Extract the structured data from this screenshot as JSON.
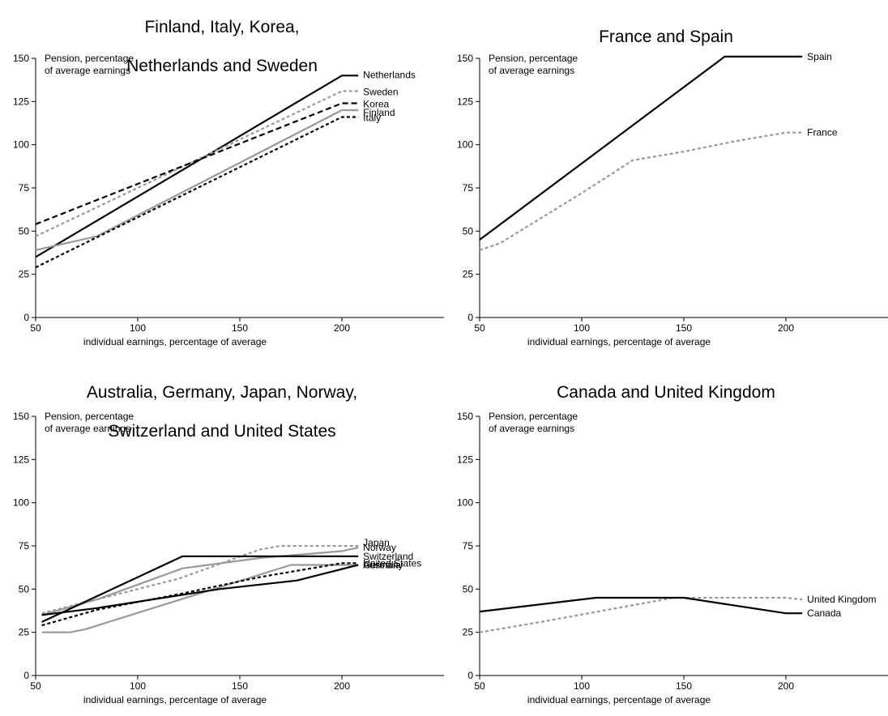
{
  "chart_data": [
    {
      "type": "line",
      "title_lines": [
        "Finland, Italy, Korea,",
        "Netherlands and Sweden"
      ],
      "ylabel_lines": [
        "Pension, percentage",
        "of average earnings"
      ],
      "xlabel": "individual earnings, percentage of average",
      "xlim": [
        50,
        250
      ],
      "ylim": [
        0,
        150
      ],
      "xticks": [
        50,
        100,
        150,
        200
      ],
      "yticks": [
        0,
        25,
        50,
        75,
        100,
        125,
        150
      ],
      "grid": false,
      "legend": "labels at line ends (right)",
      "series": [
        {
          "name": "Netherlands",
          "style": "solid",
          "color": "#000000",
          "points": [
            [
              50,
              35
            ],
            [
              200,
              140
            ],
            [
              208,
              140
            ]
          ]
        },
        {
          "name": "Sweden",
          "style": "dotted",
          "color": "#999999",
          "points": [
            [
              50,
              47
            ],
            [
              200,
              131
            ],
            [
              208,
              131
            ]
          ]
        },
        {
          "name": "Korea",
          "style": "dashed",
          "color": "#000000",
          "points": [
            [
              50,
              54
            ],
            [
              200,
              124
            ],
            [
              208,
              124
            ]
          ]
        },
        {
          "name": "Finland",
          "style": "solid",
          "color": "#999999",
          "points": [
            [
              50,
              39
            ],
            [
              80,
              47
            ],
            [
              200,
              120
            ],
            [
              208,
              120
            ]
          ]
        },
        {
          "name": "Italy",
          "style": "dotted",
          "color": "#000000",
          "points": [
            [
              50,
              29
            ],
            [
              200,
              116
            ],
            [
              208,
              116
            ]
          ]
        }
      ]
    },
    {
      "type": "line",
      "title_lines": [
        "France and Spain"
      ],
      "ylabel_lines": [
        "Pension, percentage",
        "of average earnings"
      ],
      "xlabel": "individual earnings, percentage of average",
      "xlim": [
        50,
        250
      ],
      "ylim": [
        0,
        150
      ],
      "xticks": [
        50,
        100,
        150,
        200
      ],
      "yticks": [
        0,
        25,
        50,
        75,
        100,
        125,
        150
      ],
      "grid": false,
      "legend": "labels at line ends (right)",
      "series": [
        {
          "name": "Spain",
          "style": "solid",
          "color": "#000000",
          "points": [
            [
              50,
              45
            ],
            [
              170,
              151
            ],
            [
              208,
              151
            ]
          ]
        },
        {
          "name": "France",
          "style": "dotted",
          "color": "#999999",
          "points": [
            [
              50,
              39
            ],
            [
              60,
              43
            ],
            [
              100,
              72
            ],
            [
              125,
              91
            ],
            [
              150,
              96
            ],
            [
              175,
              102
            ],
            [
              200,
              107
            ],
            [
              208,
              107
            ]
          ]
        }
      ]
    },
    {
      "type": "line",
      "title_lines": [
        "Australia, Germany, Japan, Norway,",
        "Switzerland and United States"
      ],
      "ylabel_lines": [
        "Pension, percentage",
        "of average earnings"
      ],
      "xlabel": "individual earnings, percentage of average",
      "xlim": [
        50,
        250
      ],
      "ylim": [
        0,
        150
      ],
      "xticks": [
        50,
        100,
        150,
        200
      ],
      "yticks": [
        0,
        25,
        50,
        75,
        100,
        125,
        150
      ],
      "grid": false,
      "legend": "labels at line ends (right)",
      "series": [
        {
          "name": "Japan",
          "style": "dotted",
          "color": "#999999",
          "points": [
            [
              53,
              36
            ],
            [
              80,
              44
            ],
            [
              120,
              56
            ],
            [
              160,
              73
            ],
            [
              170,
              75
            ],
            [
              200,
              75
            ],
            [
              208,
              75
            ]
          ]
        },
        {
          "name": "Norway",
          "style": "solid",
          "color": "#999999",
          "points": [
            [
              53,
              35
            ],
            [
              80,
              44
            ],
            [
              122,
              62
            ],
            [
              160,
              68
            ],
            [
              200,
              72
            ],
            [
              208,
              74
            ]
          ]
        },
        {
          "name": "Switzerland",
          "style": "solid",
          "color": "#000000",
          "points": [
            [
              53,
              31
            ],
            [
              122,
              69
            ],
            [
              208,
              69
            ]
          ]
        },
        {
          "name": "Germany",
          "style": "solid",
          "color": "#999999",
          "points": [
            [
              53,
              25
            ],
            [
              67,
              25
            ],
            [
              75,
              27
            ],
            [
              175,
              64
            ],
            [
              208,
              64
            ]
          ]
        },
        {
          "name": "United States",
          "style": "dotted",
          "color": "#000000",
          "points": [
            [
              53,
              29
            ],
            [
              80,
              38
            ],
            [
              120,
              47
            ],
            [
              160,
              57
            ],
            [
              200,
              65
            ],
            [
              208,
              65
            ]
          ]
        },
        {
          "name": "Australia",
          "style": "solid",
          "color": "#000000",
          "points": [
            [
              53,
              35
            ],
            [
              80,
              39
            ],
            [
              140,
              50
            ],
            [
              178,
              55
            ],
            [
              208,
              64
            ]
          ]
        }
      ]
    },
    {
      "type": "line",
      "title_lines": [
        "Canada and United Kingdom"
      ],
      "ylabel_lines": [
        "Pension, percentage",
        "of average earnings"
      ],
      "xlabel": "individual earnings, percentage of average",
      "xlim": [
        50,
        250
      ],
      "ylim": [
        0,
        150
      ],
      "xticks": [
        50,
        100,
        150,
        200
      ],
      "yticks": [
        0,
        25,
        50,
        75,
        100,
        125,
        150
      ],
      "grid": false,
      "legend": "labels at line ends (right)",
      "series": [
        {
          "name": "United Kingdom",
          "style": "dotted",
          "color": "#999999",
          "points": [
            [
              50,
              25
            ],
            [
              80,
              31
            ],
            [
              145,
              45
            ],
            [
              200,
              45
            ],
            [
              208,
              44
            ]
          ]
        },
        {
          "name": "Canada",
          "style": "solid",
          "color": "#000000",
          "points": [
            [
              50,
              37
            ],
            [
              107,
              45
            ],
            [
              150,
              45
            ],
            [
              200,
              36
            ],
            [
              208,
              36
            ]
          ]
        }
      ]
    }
  ]
}
